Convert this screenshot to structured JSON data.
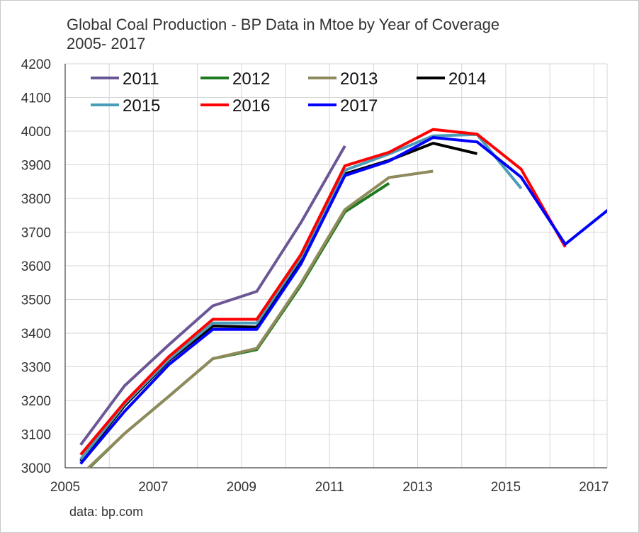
{
  "chart_data": {
    "type": "line",
    "title": "Global Coal Production - BP Data in Mtoe by Year of Coverage",
    "subtitle": "2005- 2017",
    "source_note": "data: bp.com",
    "xlabel": "",
    "ylabel": "",
    "xlim": [
      2005,
      2017.3
    ],
    "ylim": [
      3000,
      4200
    ],
    "grid": true,
    "legend_position": "top",
    "x_ticks": [
      2005,
      2006,
      2007,
      2008,
      2009,
      2010,
      2011,
      2012,
      2013,
      2014,
      2015,
      2016,
      2017
    ],
    "x_tick_labels": [
      "2005",
      "",
      "2007",
      "",
      "2009",
      "",
      "2011",
      "",
      "2013",
      "",
      "2015",
      "",
      "2017"
    ],
    "y_ticks": [
      3000,
      3100,
      3200,
      3300,
      3400,
      3500,
      3600,
      3700,
      3800,
      3900,
      4000,
      4100,
      4200
    ],
    "y_tick_labels": [
      "3000",
      "3100",
      "3200",
      "3300",
      "3400",
      "3500",
      "3600",
      "3700",
      "3800",
      "3900",
      "4000",
      "4100",
      "4200"
    ],
    "series": [
      {
        "name": "2011",
        "color": "#6b5796",
        "x": [
          2005,
          2006,
          2007,
          2008,
          2009,
          2010,
          2011
        ],
        "values": [
          3068,
          3244,
          3365,
          3481,
          3524,
          3728,
          3956
        ]
      },
      {
        "name": "2012",
        "color": "#1e7a1e",
        "x": [
          2005,
          2006,
          2007,
          2008,
          2009,
          2010,
          2011,
          2012
        ],
        "values": [
          2975,
          3102,
          3212,
          3324,
          3351,
          3542,
          3760,
          3845
        ]
      },
      {
        "name": "2013",
        "color": "#8f8a5c",
        "x": [
          2005,
          2006,
          2007,
          2008,
          2009,
          2010,
          2011,
          2012,
          2013
        ],
        "values": [
          2978,
          3102,
          3212,
          3324,
          3355,
          3548,
          3767,
          3862,
          3881
        ]
      },
      {
        "name": "2014",
        "color": "#000000",
        "x": [
          2005,
          2006,
          2007,
          2008,
          2009,
          2010,
          2011,
          2012,
          2013,
          2014
        ],
        "values": [
          3020,
          3185,
          3318,
          3421,
          3418,
          3613,
          3873,
          3913,
          3964,
          3933
        ]
      },
      {
        "name": "2015",
        "color": "#4a9db8",
        "x": [
          2005,
          2006,
          2007,
          2008,
          2009,
          2010,
          2011,
          2012,
          2013,
          2014,
          2015
        ],
        "values": [
          3025,
          3190,
          3322,
          3430,
          3430,
          3625,
          3884,
          3932,
          3986,
          3990,
          3830
        ]
      },
      {
        "name": "2016",
        "color": "#ff0000",
        "x": [
          2005,
          2006,
          2007,
          2008,
          2009,
          2010,
          2011,
          2012,
          2013,
          2014,
          2015,
          2016
        ],
        "values": [
          3039,
          3195,
          3330,
          3441,
          3441,
          3633,
          3897,
          3937,
          4005,
          3991,
          3887,
          3656
        ]
      },
      {
        "name": "2017",
        "color": "#0000ff",
        "x": [
          2005,
          2006,
          2007,
          2008,
          2009,
          2010,
          2011,
          2012,
          2013,
          2014,
          2015,
          2016,
          2017
        ],
        "values": [
          3012,
          3168,
          3306,
          3411,
          3411,
          3605,
          3868,
          3911,
          3981,
          3968,
          3863,
          3664,
          3769
        ]
      }
    ]
  }
}
